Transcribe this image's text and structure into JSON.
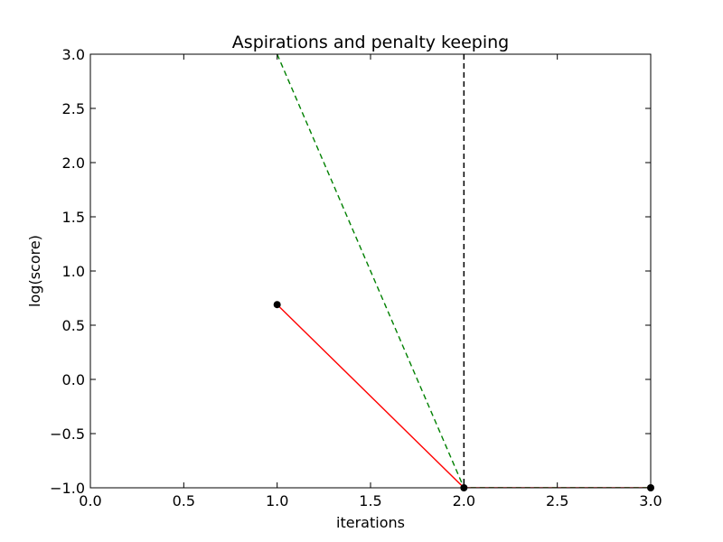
{
  "chart_data": {
    "type": "line",
    "title": "Aspirations and penalty keeping",
    "xlabel": "iterations",
    "ylabel": "log(score)",
    "xlim": [
      0.0,
      3.0
    ],
    "ylim": [
      -1.0,
      3.0
    ],
    "xticks": [
      0.0,
      0.5,
      1.0,
      1.5,
      2.0,
      2.5,
      3.0
    ],
    "xtick_labels": [
      "0.0",
      "0.5",
      "1.0",
      "1.5",
      "2.0",
      "2.5",
      "3.0"
    ],
    "yticks": [
      -1.0,
      -0.5,
      0.0,
      0.5,
      1.0,
      1.5,
      2.0,
      2.5,
      3.0
    ],
    "ytick_labels": [
      "−1.0",
      "−0.5",
      "0.0",
      "0.5",
      "1.0",
      "1.5",
      "2.0",
      "2.5",
      "3.0"
    ],
    "grid": false,
    "legend": "none",
    "series": [
      {
        "style": "solid",
        "color": "#ff0000",
        "x": [
          1.0,
          2.0,
          3.0
        ],
        "y": [
          0.69,
          -1.0,
          -1.0
        ]
      },
      {
        "style": "dashed",
        "color": "#008000",
        "x": [
          1.0,
          2.0,
          3.0
        ],
        "y": [
          3.0,
          -1.0,
          -1.0
        ]
      }
    ],
    "points": {
      "color": "#000000",
      "x": [
        1.0,
        2.0,
        3.0
      ],
      "y": [
        0.69,
        -1.0,
        -1.0
      ]
    },
    "vlines": [
      {
        "x": 2.0,
        "style": "dashed",
        "color": "#000000"
      }
    ]
  }
}
